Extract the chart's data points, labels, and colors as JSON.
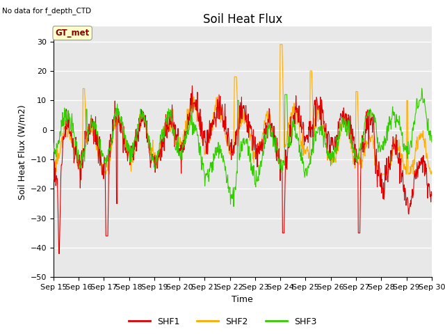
{
  "title": "Soil Heat Flux",
  "xlabel": "Time",
  "ylabel": "Soil Heat Flux (W/m2)",
  "note": "No data for f_depth_CTD",
  "annotation": "GT_met",
  "ylim": [
    -50,
    35
  ],
  "yticks": [
    -50,
    -40,
    -30,
    -20,
    -10,
    0,
    10,
    20,
    30
  ],
  "xtick_labels": [
    "Sep 15",
    "Sep 16",
    "Sep 17",
    "Sep 18",
    "Sep 19",
    "Sep 20",
    "Sep 21",
    "Sep 22",
    "Sep 23",
    "Sep 24",
    "Sep 25",
    "Sep 26",
    "Sep 27",
    "Sep 28",
    "Sep 29",
    "Sep 30"
  ],
  "series_colors": {
    "SHF1": "#dd0000",
    "SHF2": "#ffaa00",
    "SHF3": "#33cc00"
  },
  "bg_color": "#e8e8e8",
  "n_points": 960,
  "title_fontsize": 12,
  "label_fontsize": 9,
  "tick_fontsize": 8
}
